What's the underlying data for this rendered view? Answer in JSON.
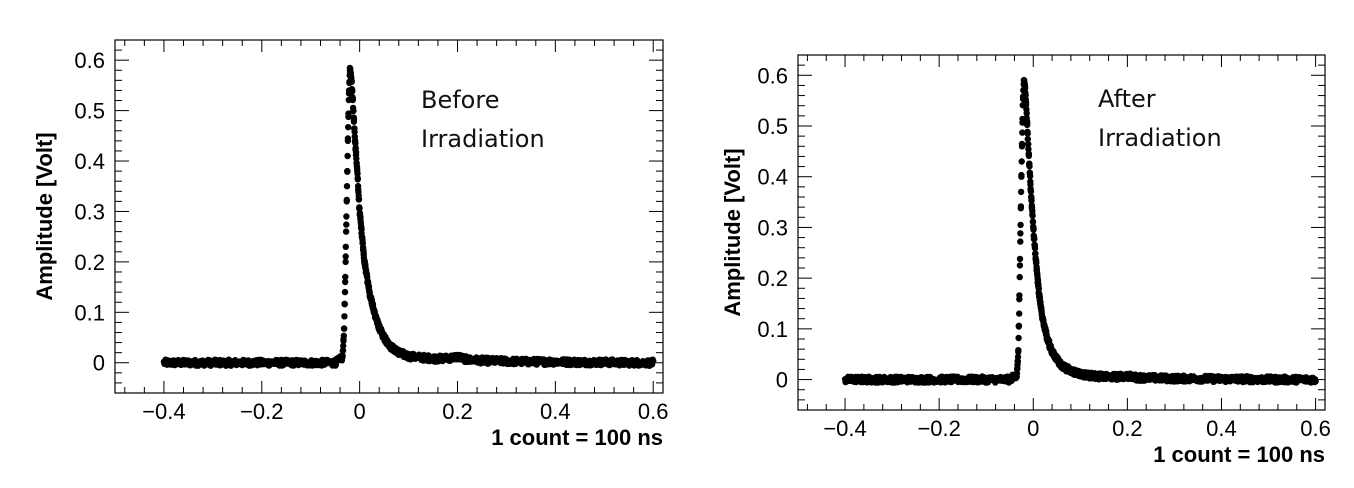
{
  "chart_data": [
    {
      "type": "scatter",
      "title": "",
      "annotation": [
        "Before",
        "Irradiation"
      ],
      "xlabel": "1 count = 100 ns",
      "ylabel": "Amplitude [Volt]",
      "xlim": [
        -0.5,
        0.62
      ],
      "ylim": [
        -0.06,
        0.64
      ],
      "xticks": [
        -0.4,
        -0.2,
        0,
        0.2,
        0.4,
        0.6
      ],
      "xtick_labels": [
        "−0.4",
        "−0.2",
        "0",
        "0.2",
        "0.4",
        "0.6"
      ],
      "yticks": [
        0,
        0.1,
        0.2,
        0.3,
        0.4,
        0.5,
        0.6
      ],
      "ytick_labels": [
        "0",
        "0.1",
        "0.2",
        "0.3",
        "0.4",
        "0.5",
        "0.6"
      ],
      "grid": false,
      "series": [
        {
          "x": [
            -0.4,
            -0.36,
            -0.32,
            -0.28,
            -0.24,
            -0.2,
            -0.16,
            -0.12,
            -0.08,
            -0.05,
            -0.035,
            -0.032,
            -0.03,
            -0.028,
            -0.026,
            -0.024,
            -0.022,
            -0.02,
            -0.018,
            -0.016,
            -0.014,
            -0.01,
            -0.005,
            0,
            0.005,
            0.01,
            0.015,
            0.02,
            0.03,
            0.04,
            0.05,
            0.06,
            0.08,
            0.1,
            0.13,
            0.16,
            0.19,
            0.2,
            0.22,
            0.26,
            0.3,
            0.35,
            0.4,
            0.45,
            0.5,
            0.55,
            0.6
          ],
          "y": [
            0.0,
            0.0,
            0.0,
            0.0,
            0.0,
            0.0,
            0.0,
            0.0,
            0.0,
            0.0,
            0.01,
            0.06,
            0.14,
            0.24,
            0.34,
            0.44,
            0.53,
            0.58,
            0.57,
            0.55,
            0.52,
            0.45,
            0.38,
            0.3,
            0.25,
            0.2,
            0.17,
            0.14,
            0.1,
            0.07,
            0.05,
            0.035,
            0.02,
            0.013,
            0.01,
            0.008,
            0.01,
            0.012,
            0.006,
            0.004,
            0.003,
            0.002,
            0.002,
            0.001,
            0.001,
            0.0,
            0.0
          ]
        }
      ]
    },
    {
      "type": "scatter",
      "title": "",
      "annotation": [
        "After",
        "Irradiation"
      ],
      "xlabel": "1 count = 100 ns",
      "ylabel": "Amplitude [Volt]",
      "xlim": [
        -0.5,
        0.62
      ],
      "ylim": [
        -0.06,
        0.64
      ],
      "xticks": [
        -0.4,
        -0.2,
        0,
        0.2,
        0.4,
        0.6
      ],
      "xtick_labels": [
        "−0.4",
        "−0.2",
        "0",
        "0.2",
        "0.4",
        "0.6"
      ],
      "yticks": [
        0,
        0.1,
        0.2,
        0.3,
        0.4,
        0.5,
        0.6
      ],
      "ytick_labels": [
        "0",
        "0.1",
        "0.2",
        "0.3",
        "0.4",
        "0.5",
        "0.6"
      ],
      "grid": false,
      "series": [
        {
          "x": [
            -0.4,
            -0.36,
            -0.32,
            -0.28,
            -0.24,
            -0.2,
            -0.16,
            -0.12,
            -0.08,
            -0.05,
            -0.035,
            -0.032,
            -0.03,
            -0.028,
            -0.026,
            -0.024,
            -0.022,
            -0.02,
            -0.018,
            -0.016,
            -0.014,
            -0.01,
            -0.005,
            0,
            0.005,
            0.01,
            0.015,
            0.02,
            0.03,
            0.04,
            0.05,
            0.06,
            0.08,
            0.1,
            0.13,
            0.16,
            0.19,
            0.2,
            0.22,
            0.26,
            0.3,
            0.35,
            0.4,
            0.45,
            0.5,
            0.55,
            0.6
          ],
          "y": [
            0.0,
            0.0,
            0.0,
            0.0,
            0.0,
            0.0,
            0.0,
            0.0,
            0.0,
            0.0,
            0.01,
            0.05,
            0.13,
            0.25,
            0.36,
            0.46,
            0.55,
            0.59,
            0.58,
            0.56,
            0.52,
            0.45,
            0.37,
            0.3,
            0.24,
            0.19,
            0.15,
            0.12,
            0.08,
            0.055,
            0.04,
            0.028,
            0.017,
            0.011,
            0.007,
            0.005,
            0.006,
            0.007,
            0.004,
            0.003,
            0.002,
            0.002,
            0.001,
            0.001,
            0.0,
            0.0,
            0.0
          ]
        }
      ]
    }
  ]
}
